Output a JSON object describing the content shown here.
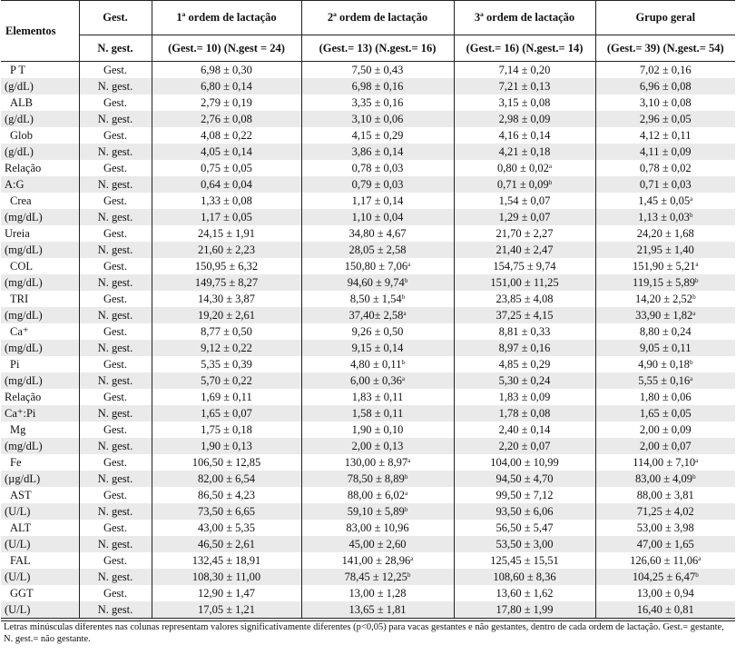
{
  "header": {
    "elementos": "Elementos",
    "gest": "Gest.",
    "ngest": "N. gest.",
    "cols": [
      {
        "title": "1ª ordem de lactação",
        "sub": "(Gest.= 10) (N.gest = 24)"
      },
      {
        "title": "2ª ordem de lactação",
        "sub": "(Gest.= 13) (N.gest.= 16)"
      },
      {
        "title": "3ª ordem de lactação",
        "sub": "(Gest.= 16) (N.gest.= 14)"
      },
      {
        "title": "Grupo geral",
        "sub": "(Gest.= 39) (N.gest.= 54)"
      }
    ]
  },
  "rows": [
    {
      "label": "P T",
      "group": "Gest.",
      "v": [
        "6,98 ± 0,30",
        "7,50 ± 0,43",
        "7,14 ± 0,20",
        "7,02 ± 0,16"
      ],
      "s": [
        "",
        "",
        "",
        ""
      ]
    },
    {
      "label": "(g/dL)",
      "group": "N. gest.",
      "v": [
        "6,80 ± 0,14",
        "6,98 ± 0,16",
        "7,21 ± 0,13",
        "6,96 ± 0,08"
      ],
      "s": [
        "",
        "",
        "",
        ""
      ]
    },
    {
      "label": "ALB",
      "group": "Gest.",
      "v": [
        "2,79 ± 0,19",
        "3,35 ± 0,16",
        "3,15 ± 0,08",
        "3,10 ± 0,08"
      ],
      "s": [
        "",
        "",
        "",
        ""
      ]
    },
    {
      "label": "(g/dL)",
      "group": "N. gest.",
      "v": [
        "2,76 ± 0,08",
        "3,10 ± 0,06",
        "2,98 ± 0,09",
        "2,96 ± 0,05"
      ],
      "s": [
        "",
        "",
        "",
        ""
      ]
    },
    {
      "label": "Glob",
      "group": "Gest.",
      "v": [
        "4,08 ± 0,22",
        "4,15 ± 0,29",
        "4,16 ± 0,14",
        "4,12 ± 0,11"
      ],
      "s": [
        "",
        "",
        "",
        ""
      ]
    },
    {
      "label": "(g/dL)",
      "group": "N. gest.",
      "v": [
        "4,05 ± 0,14",
        "3,86 ± 0,14",
        "4,21 ± 0,18",
        "4,11 ± 0,09"
      ],
      "s": [
        "",
        "",
        "",
        ""
      ]
    },
    {
      "label": "Relação",
      "group": "Gest.",
      "v": [
        "0,75 ± 0,05",
        "0,78 ± 0,03",
        "0,80 ± 0,02",
        "0,78 ± 0,02"
      ],
      "s": [
        "",
        "",
        "a",
        ""
      ]
    },
    {
      "label": "A:G",
      "group": "N. gest.",
      "v": [
        "0,64 ± 0,04",
        "0,79 ± 0,03",
        "0,71 ± 0,09",
        "0,71 ± 0,03"
      ],
      "s": [
        "",
        "",
        "b",
        ""
      ]
    },
    {
      "label": "Crea",
      "group": "Gest.",
      "v": [
        "1,33 ± 0,08",
        "1,17 ± 0,14",
        "1,54 ± 0,07",
        "1,45 ± 0,05"
      ],
      "s": [
        "",
        "",
        "",
        "a"
      ]
    },
    {
      "label": "(mg/dL)",
      "group": "N. gest.",
      "v": [
        "1,17 ± 0,05",
        "1,10 ± 0,04",
        "1,29 ± 0,07",
        "1,13 ± 0,03"
      ],
      "s": [
        "",
        "",
        "",
        "b"
      ]
    },
    {
      "label": "Ureia",
      "group": "Gest.",
      "v": [
        "24,15 ± 1,91",
        "34,80 ± 4,67",
        "21,70 ± 2,27",
        "24,20 ± 1,68"
      ],
      "s": [
        "",
        "",
        "",
        ""
      ]
    },
    {
      "label": "(mg/dL)",
      "group": "N. gest.",
      "v": [
        "21,60 ± 2,23",
        "28,05 ± 2,58",
        "21,40 ± 2,47",
        "21,95 ± 1,40"
      ],
      "s": [
        "",
        "",
        "",
        ""
      ]
    },
    {
      "label": "COL",
      "group": "Gest.",
      "v": [
        "150,95 ± 6,32",
        "150,80 ± 7,06",
        "154,75 ± 9,74",
        "151,90 ± 5,21"
      ],
      "s": [
        "",
        "a",
        "",
        "a"
      ]
    },
    {
      "label": "(mg/dL)",
      "group": "N. gest.",
      "v": [
        "149,75 ± 8,27",
        "94,60 ± 9,74",
        "151,00 ± 11,25",
        "119,15 ± 5,89"
      ],
      "s": [
        "",
        "b",
        "",
        "b"
      ]
    },
    {
      "label": "TRI",
      "group": "Gest.",
      "v": [
        "14,30 ± 3,87",
        "8,50 ± 1,54",
        "23,85 ± 4,08",
        "14,20 ± 2,52"
      ],
      "s": [
        "",
        "b",
        "",
        "b"
      ]
    },
    {
      "label": "(mg/dL)",
      "group": "N. gest.",
      "v": [
        "19,20 ± 2,61",
        "37,40± 2,58",
        "37,25 ± 4,15",
        "33,90 ± 1,82"
      ],
      "s": [
        "",
        "a",
        "",
        "a"
      ]
    },
    {
      "label": "Ca⁺",
      "group": "Gest.",
      "v": [
        "8,77 ± 0,50",
        "9,26 ± 0,50",
        "8,81 ± 0,33",
        "8,80 ± 0,24"
      ],
      "s": [
        "",
        "",
        "",
        ""
      ]
    },
    {
      "label": "(mg/dL)",
      "group": "N. gest.",
      "v": [
        "9,12 ± 0,22",
        "9,15 ± 0,14",
        "8,97 ± 0,16",
        "9,05 ± 0,11"
      ],
      "s": [
        "",
        "",
        "",
        ""
      ]
    },
    {
      "label": "Pi",
      "group": "Gest.",
      "v": [
        "5,35 ± 0,39",
        "4,80 ± 0,11",
        "4,85 ± 0,29",
        "4,90 ± 0,18"
      ],
      "s": [
        "",
        "b",
        "",
        "b"
      ]
    },
    {
      "label": "(mg/dL)",
      "group": "N. gest.",
      "v": [
        "5,70 ± 0,22",
        "6,00 ± 0,36",
        "5,30 ± 0,24",
        "5,55 ± 0,16"
      ],
      "s": [
        "",
        "a",
        "",
        "a"
      ]
    },
    {
      "label": "Relação",
      "group": "Gest.",
      "v": [
        "1,69 ± 0,11",
        "1,83 ± 0,11",
        "1,83 ± 0,09",
        "1,80 ± 0,06"
      ],
      "s": [
        "",
        "",
        "",
        ""
      ]
    },
    {
      "label": "Ca⁺:Pi",
      "group": "N. gest.",
      "v": [
        "1,65 ± 0,07",
        "1,58 ± 0,11",
        "1,78 ± 0,08",
        "1,65 ± 0,05"
      ],
      "s": [
        "",
        "",
        "",
        ""
      ]
    },
    {
      "label": "Mg",
      "group": "Gest.",
      "v": [
        "1,75 ± 0,18",
        "1,90 ± 0,10",
        "2,40 ± 0,14",
        "2,00 ± 0,09"
      ],
      "s": [
        "",
        "",
        "",
        ""
      ]
    },
    {
      "label": "(mg/dL)",
      "group": "N. gest.",
      "v": [
        "1,90 ± 0,13",
        "2,00 ± 0,13",
        "2,20 ± 0,07",
        "2,00 ± 0,07"
      ],
      "s": [
        "",
        "",
        "",
        ""
      ]
    },
    {
      "label": "Fe",
      "group": "Gest.",
      "v": [
        "106,50 ± 12,85",
        "130,00 ± 8,97",
        "104,00 ± 10,99",
        "114,00 ± 7,10"
      ],
      "s": [
        "",
        "a",
        "",
        "a"
      ]
    },
    {
      "label": "(µg/dL)",
      "group": "N. gest.",
      "v": [
        "82,00 ± 6,54",
        "78,50 ± 8,89",
        "94,50 ± 4,70",
        "83,00 ± 4,09"
      ],
      "s": [
        "",
        "b",
        "",
        "b"
      ]
    },
    {
      "label": "AST",
      "group": "Gest.",
      "v": [
        "86,50 ± 4,23",
        "88,00 ± 6,02",
        "99,50 ± 7,12",
        "88,00 ± 3,81"
      ],
      "s": [
        "",
        "a",
        "",
        ""
      ]
    },
    {
      "label": "(U/L)",
      "group": "N. gest.",
      "v": [
        "73,50 ± 6,65",
        "59,10 ± 5,89",
        "93,50 ± 6,06",
        "71,25 ± 4,02"
      ],
      "s": [
        "",
        "b",
        "",
        ""
      ]
    },
    {
      "label": "ALT",
      "group": "Gest.",
      "v": [
        "43,00 ± 5,35",
        "83,00 ± 10,96",
        "56,50 ± 5,47",
        "53,00 ± 3,98"
      ],
      "s": [
        "",
        "",
        "",
        ""
      ]
    },
    {
      "label": "(U/L)",
      "group": "N. gest.",
      "v": [
        "46,50 ± 2,61",
        "45,00 ± 2,60",
        "53,50 ± 3,00",
        "47,00 ± 1,65"
      ],
      "s": [
        "",
        "",
        "",
        ""
      ]
    },
    {
      "label": "FAL",
      "group": "Gest.",
      "v": [
        "132,45 ± 18,91",
        "141,00 ± 28,96",
        "125,45 ± 15,51",
        "126,60 ± 11,06"
      ],
      "s": [
        "",
        "a",
        "",
        "a"
      ]
    },
    {
      "label": "(U/L)",
      "group": "N. gest.",
      "v": [
        "108,30 ± 11,00",
        "78,45 ± 12,25",
        "108,60 ± 8,36",
        "104,25 ± 6,47"
      ],
      "s": [
        "",
        "b",
        "",
        "b"
      ]
    },
    {
      "label": "GGT",
      "group": "Gest.",
      "v": [
        "12,90 ± 1,47",
        "13,00 ± 1,28",
        "13,60 ± 1,62",
        "13,00 ± 0,94"
      ],
      "s": [
        "",
        "",
        "",
        ""
      ]
    },
    {
      "label": "(U/L)",
      "group": "N. gest.",
      "v": [
        "17,05 ± 1,21",
        "13,65 ± 1,81",
        "17,80 ± 1,99",
        "16,40 ± 0,81"
      ],
      "s": [
        "",
        "",
        "",
        ""
      ]
    }
  ],
  "note": "Letras minúsculas diferentes nas colunas representam valores significativamente diferentes (p<0,05) para vacas gestantes e não gestantes, dentro de cada ordem de lactação. Gest.= gestante, N. gest.= não gestante."
}
